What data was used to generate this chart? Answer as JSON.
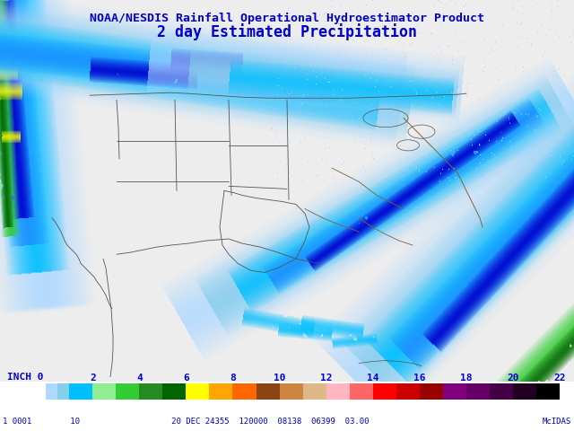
{
  "title1": "NOAA/NESDIS Rainfall Operational Hydroestimator Product",
  "title2": "2 day Estimated Precipitation",
  "title_color": "#0000CC",
  "bg_color": "#FFFFFF",
  "bottom_text_left": "1 0001        10                   20 DEC 24355  120000  08138  06399  03.00",
  "bottom_text_right": "McIDAS",
  "bottom_text_color": "#0000CC",
  "map_bg": "#F0F0F0",
  "border_color": "#606060",
  "colorbar_segments": [
    [
      0,
      0.5,
      "#ADD8FF"
    ],
    [
      0.5,
      1.0,
      "#87CEEB"
    ],
    [
      1.0,
      2.0,
      "#00BFFF"
    ],
    [
      2.0,
      3.0,
      "#90EE90"
    ],
    [
      3.0,
      4.0,
      "#32CD32"
    ],
    [
      4.0,
      5.0,
      "#228B22"
    ],
    [
      5.0,
      6.0,
      "#006400"
    ],
    [
      6.0,
      7.0,
      "#FFFF00"
    ],
    [
      7.0,
      8.0,
      "#FFA500"
    ],
    [
      8.0,
      9.0,
      "#FF6600"
    ],
    [
      9.0,
      10.0,
      "#8B4513"
    ],
    [
      10.0,
      11.0,
      "#CD853F"
    ],
    [
      11.0,
      12.0,
      "#DEB887"
    ],
    [
      12.0,
      13.0,
      "#FFB6C1"
    ],
    [
      13.0,
      14.0,
      "#FF6666"
    ],
    [
      14.0,
      15.0,
      "#FF0000"
    ],
    [
      15.0,
      16.0,
      "#CC0000"
    ],
    [
      16.0,
      17.0,
      "#990000"
    ],
    [
      17.0,
      18.0,
      "#800080"
    ],
    [
      18.0,
      19.0,
      "#660066"
    ],
    [
      19.0,
      20.0,
      "#440044"
    ],
    [
      20.0,
      21.0,
      "#220022"
    ],
    [
      21.0,
      22.0,
      "#000000"
    ]
  ],
  "colorbar_ticks": [
    0,
    2,
    4,
    6,
    8,
    10,
    12,
    14,
    16,
    18,
    20,
    22
  ]
}
